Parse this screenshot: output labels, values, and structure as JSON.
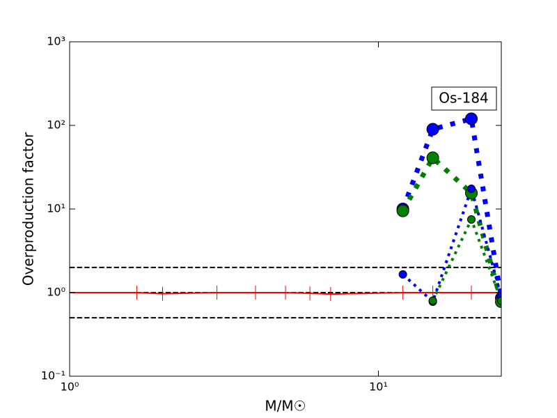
{
  "chart_data": {
    "type": "line",
    "xlabel": "M/M☉",
    "ylabel": "Overproduction factor",
    "annotation": "Os-184",
    "xscale": "log",
    "yscale": "log",
    "xlim": [
      1,
      25
    ],
    "ylim": [
      0.1,
      1000
    ],
    "xticks": [
      {
        "value": 1,
        "label": "10⁰"
      },
      {
        "value": 10,
        "label": "10¹"
      }
    ],
    "yticks": [
      {
        "value": 0.1,
        "label": "10⁻¹"
      },
      {
        "value": 1,
        "label": "10⁰"
      },
      {
        "value": 10,
        "label": "10¹"
      },
      {
        "value": 100,
        "label": "10²"
      },
      {
        "value": 1000,
        "label": "10³"
      }
    ],
    "series": [
      {
        "color": "#000000",
        "linestyle": "dashed",
        "linewidth": 2,
        "x": [
          1,
          25
        ],
        "values": [
          2,
          2
        ]
      },
      {
        "color": "#000000",
        "linestyle": "dashed",
        "linewidth": 2,
        "x": [
          1,
          25
        ],
        "values": [
          1,
          1
        ]
      },
      {
        "color": "#000000",
        "linestyle": "dashed",
        "linewidth": 2,
        "x": [
          1,
          25
        ],
        "values": [
          0.5,
          0.5
        ]
      },
      {
        "color": "#ff0000",
        "linestyle": "solid",
        "linewidth": 2,
        "marker": "vline",
        "markersize": 20,
        "x": [
          1,
          1.65,
          2,
          3,
          4,
          5,
          6,
          7,
          12,
          15,
          20,
          25
        ],
        "values": [
          1,
          1,
          0.97,
          1,
          1,
          1,
          0.98,
          0.96,
          1,
          1,
          1,
          1
        ]
      },
      {
        "color": "#0000ff",
        "linestyle": "dotted",
        "linewidth": 7,
        "marker": "circle",
        "markersize": 17,
        "x": [
          12,
          15,
          20,
          25
        ],
        "values": [
          10,
          90,
          120,
          0.86
        ]
      },
      {
        "color": "#008000",
        "linestyle": "dotted",
        "linewidth": 7,
        "marker": "circle",
        "markersize": 17,
        "x": [
          12,
          15,
          20,
          25
        ],
        "values": [
          9.5,
          41,
          15.5,
          0.78
        ]
      },
      {
        "color": "#0000ff",
        "linestyle": "dotted",
        "linewidth": 4,
        "marker": "circle",
        "markersize": 11,
        "x": [
          12,
          15,
          20,
          25
        ],
        "values": [
          1.65,
          0.78,
          17.5,
          0.9
        ]
      },
      {
        "color": "#008000",
        "linestyle": "dotted",
        "linewidth": 4,
        "marker": "circle",
        "markersize": 11,
        "x": [
          15,
          20,
          25
        ],
        "values": [
          0.8,
          7.5,
          0.8
        ]
      }
    ]
  }
}
